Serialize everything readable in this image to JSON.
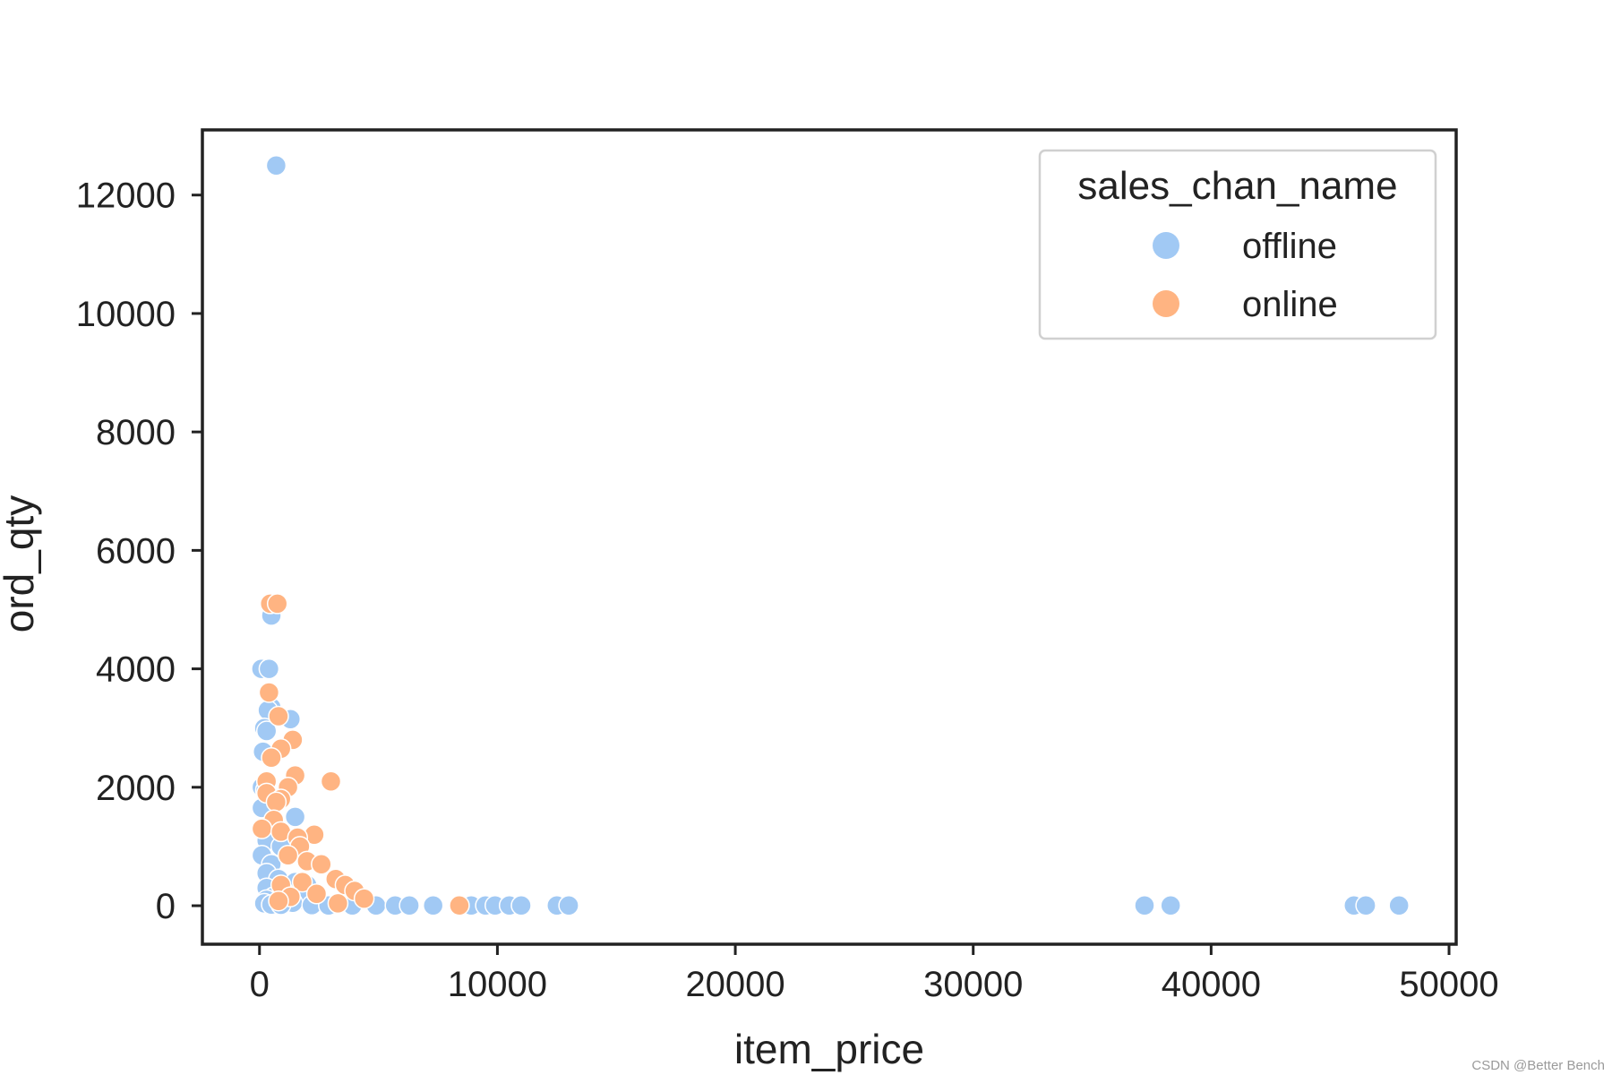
{
  "chart_data": {
    "type": "scatter",
    "title": "",
    "xlabel": "item_price",
    "ylabel": "ord_qty",
    "xlim": [
      -2400,
      50300
    ],
    "ylim": [
      -650,
      13100
    ],
    "xticks": [
      0,
      10000,
      20000,
      30000,
      40000,
      50000
    ],
    "yticks": [
      0,
      2000,
      4000,
      6000,
      8000,
      10000,
      12000
    ],
    "xtick_labels": [
      "0",
      "10000",
      "20000",
      "30000",
      "40000",
      "50000"
    ],
    "ytick_labels": [
      "0",
      "2000",
      "4000",
      "6000",
      "8000",
      "10000",
      "12000"
    ],
    "grid": false,
    "legend": {
      "title": "sales_chan_name",
      "position": "top-right"
    },
    "series": [
      {
        "name": "offline",
        "color": "#a1c9f4",
        "points": [
          [
            700,
            12500
          ],
          [
            500,
            4900
          ],
          [
            80,
            4000
          ],
          [
            400,
            4000
          ],
          [
            500,
            3350
          ],
          [
            350,
            3300
          ],
          [
            1300,
            3150
          ],
          [
            200,
            3000
          ],
          [
            300,
            2950
          ],
          [
            150,
            2600
          ],
          [
            100,
            2000
          ],
          [
            250,
            1950
          ],
          [
            600,
            1800
          ],
          [
            100,
            1650
          ],
          [
            1500,
            1500
          ],
          [
            500,
            1250
          ],
          [
            300,
            1100
          ],
          [
            900,
            1000
          ],
          [
            100,
            850
          ],
          [
            500,
            700
          ],
          [
            300,
            550
          ],
          [
            800,
            450
          ],
          [
            1500,
            400
          ],
          [
            2000,
            350
          ],
          [
            300,
            300
          ],
          [
            1000,
            250
          ],
          [
            600,
            150
          ],
          [
            300,
            100
          ],
          [
            1800,
            100
          ],
          [
            1000,
            100
          ],
          [
            2500,
            50
          ],
          [
            1400,
            50
          ],
          [
            200,
            40
          ],
          [
            500,
            20
          ],
          [
            900,
            15
          ],
          [
            2200,
            10
          ],
          [
            2900,
            5
          ],
          [
            3900,
            5
          ],
          [
            4900,
            5
          ],
          [
            5700,
            5
          ],
          [
            6300,
            5
          ],
          [
            7300,
            5
          ],
          [
            8900,
            5
          ],
          [
            9500,
            5
          ],
          [
            9900,
            5
          ],
          [
            10500,
            5
          ],
          [
            11000,
            5
          ],
          [
            12500,
            5
          ],
          [
            13000,
            5
          ],
          [
            37200,
            5
          ],
          [
            38300,
            5
          ],
          [
            46000,
            5
          ],
          [
            46500,
            5
          ],
          [
            47900,
            5
          ]
        ]
      },
      {
        "name": "online",
        "color": "#ffb482",
        "points": [
          [
            450,
            5100
          ],
          [
            750,
            5100
          ],
          [
            400,
            3600
          ],
          [
            800,
            3200
          ],
          [
            1400,
            2800
          ],
          [
            900,
            2650
          ],
          [
            500,
            2500
          ],
          [
            1500,
            2200
          ],
          [
            300,
            2100
          ],
          [
            3000,
            2100
          ],
          [
            1200,
            2000
          ],
          [
            300,
            1900
          ],
          [
            900,
            1800
          ],
          [
            700,
            1750
          ],
          [
            600,
            1450
          ],
          [
            100,
            1300
          ],
          [
            900,
            1250
          ],
          [
            2300,
            1200
          ],
          [
            1600,
            1150
          ],
          [
            1700,
            1000
          ],
          [
            1200,
            850
          ],
          [
            2000,
            750
          ],
          [
            2600,
            700
          ],
          [
            3200,
            450
          ],
          [
            1800,
            400
          ],
          [
            900,
            350
          ],
          [
            3600,
            350
          ],
          [
            4000,
            250
          ],
          [
            2400,
            200
          ],
          [
            1300,
            150
          ],
          [
            4400,
            120
          ],
          [
            800,
            80
          ],
          [
            3300,
            40
          ],
          [
            8400,
            5
          ]
        ]
      }
    ],
    "watermark": "CSDN @Better Bench"
  }
}
